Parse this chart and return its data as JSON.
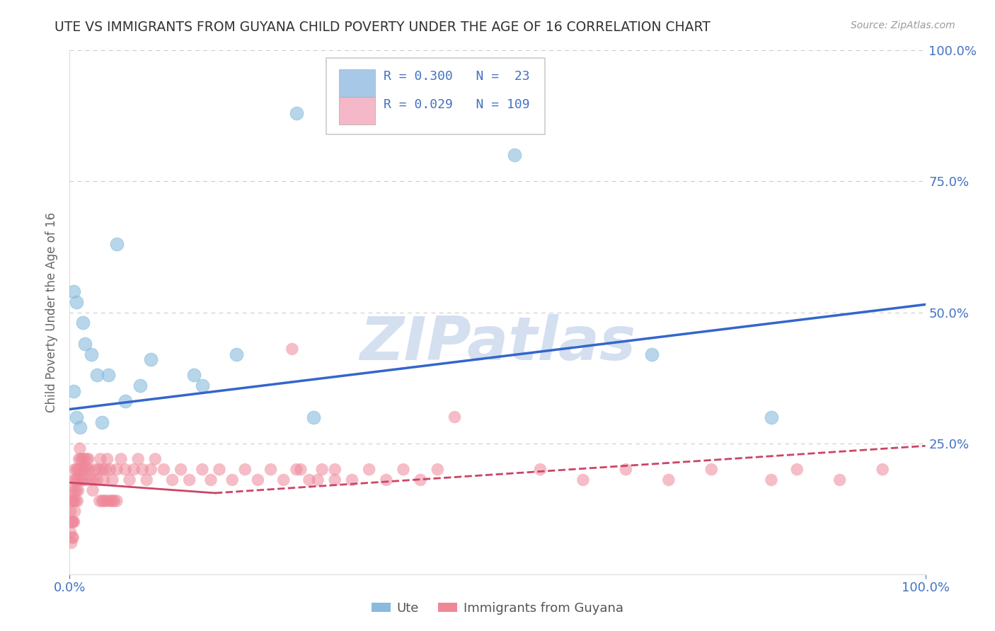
{
  "title": "UTE VS IMMIGRANTS FROM GUYANA CHILD POVERTY UNDER THE AGE OF 16 CORRELATION CHART",
  "source": "Source: ZipAtlas.com",
  "ylabel": "Child Poverty Under the Age of 16",
  "watermark": "ZIPatlas",
  "xlim": [
    0.0,
    1.0
  ],
  "ylim": [
    0.0,
    1.0
  ],
  "ytick_positions": [
    0.0,
    0.25,
    0.5,
    0.75,
    1.0
  ],
  "legend_line1": "R = 0.300   N =  23",
  "legend_line2": "R = 0.029   N = 109",
  "legend_color1": "#a8c8e8",
  "legend_color2": "#f4b8c8",
  "series1_name": "Ute",
  "series2_name": "Immigrants from Guyana",
  "series1_color": "#88bbdd",
  "series2_color": "#ee8899",
  "series1_edge": "#88bbdd",
  "series2_edge": "#ee8899",
  "line1_color": "#3366cc",
  "line2_color": "#cc4466",
  "background_color": "#ffffff",
  "grid_color": "#cccccc",
  "title_color": "#333333",
  "source_color": "#999999",
  "watermark_color": "#d4dff0",
  "tick_color": "#4472c4",
  "ylabel_color": "#666666",
  "ute_x": [
    0.265,
    0.52,
    0.005,
    0.008,
    0.015,
    0.018,
    0.025,
    0.032,
    0.045,
    0.055,
    0.065,
    0.082,
    0.095,
    0.145,
    0.155,
    0.195,
    0.285,
    0.68,
    0.82,
    0.005,
    0.008,
    0.012,
    0.038
  ],
  "ute_y": [
    0.88,
    0.8,
    0.54,
    0.52,
    0.48,
    0.44,
    0.42,
    0.38,
    0.38,
    0.63,
    0.33,
    0.36,
    0.41,
    0.38,
    0.36,
    0.42,
    0.3,
    0.42,
    0.3,
    0.35,
    0.3,
    0.28,
    0.29
  ],
  "guyana_x": [
    0.001,
    0.001,
    0.002,
    0.002,
    0.002,
    0.003,
    0.003,
    0.003,
    0.004,
    0.004,
    0.004,
    0.005,
    0.005,
    0.005,
    0.006,
    0.006,
    0.006,
    0.007,
    0.007,
    0.008,
    0.008,
    0.009,
    0.009,
    0.01,
    0.01,
    0.011,
    0.011,
    0.012,
    0.012,
    0.013,
    0.014,
    0.015,
    0.015,
    0.016,
    0.017,
    0.018,
    0.019,
    0.02,
    0.021,
    0.022,
    0.023,
    0.025,
    0.027,
    0.028,
    0.03,
    0.032,
    0.034,
    0.036,
    0.038,
    0.04,
    0.042,
    0.044,
    0.047,
    0.05,
    0.055,
    0.06,
    0.065,
    0.07,
    0.075,
    0.08,
    0.085,
    0.09,
    0.095,
    0.1,
    0.11,
    0.12,
    0.13,
    0.14,
    0.155,
    0.165,
    0.175,
    0.19,
    0.205,
    0.22,
    0.235,
    0.25,
    0.265,
    0.28,
    0.295,
    0.31,
    0.26,
    0.27,
    0.29,
    0.31,
    0.33,
    0.35,
    0.37,
    0.39,
    0.41,
    0.43,
    0.45,
    0.55,
    0.6,
    0.65,
    0.7,
    0.75,
    0.82,
    0.85,
    0.9,
    0.95,
    0.035,
    0.038,
    0.04,
    0.042,
    0.045,
    0.048,
    0.05,
    0.052,
    0.055
  ],
  "guyana_y": [
    0.12,
    0.08,
    0.14,
    0.1,
    0.06,
    0.16,
    0.1,
    0.07,
    0.14,
    0.1,
    0.07,
    0.18,
    0.14,
    0.1,
    0.2,
    0.16,
    0.12,
    0.18,
    0.14,
    0.2,
    0.16,
    0.18,
    0.14,
    0.2,
    0.16,
    0.22,
    0.18,
    0.24,
    0.2,
    0.22,
    0.18,
    0.22,
    0.18,
    0.2,
    0.22,
    0.2,
    0.18,
    0.22,
    0.2,
    0.22,
    0.2,
    0.18,
    0.16,
    0.18,
    0.2,
    0.18,
    0.2,
    0.22,
    0.2,
    0.18,
    0.2,
    0.22,
    0.2,
    0.18,
    0.2,
    0.22,
    0.2,
    0.18,
    0.2,
    0.22,
    0.2,
    0.18,
    0.2,
    0.22,
    0.2,
    0.18,
    0.2,
    0.18,
    0.2,
    0.18,
    0.2,
    0.18,
    0.2,
    0.18,
    0.2,
    0.18,
    0.2,
    0.18,
    0.2,
    0.18,
    0.43,
    0.2,
    0.18,
    0.2,
    0.18,
    0.2,
    0.18,
    0.2,
    0.18,
    0.2,
    0.3,
    0.2,
    0.18,
    0.2,
    0.18,
    0.2,
    0.18,
    0.2,
    0.18,
    0.2,
    0.14,
    0.14,
    0.14,
    0.14,
    0.14,
    0.14,
    0.14,
    0.14,
    0.14
  ],
  "line1_x": [
    0.0,
    1.0
  ],
  "line1_y": [
    0.315,
    0.515
  ],
  "line2_x": [
    0.0,
    0.17,
    1.0
  ],
  "line2_y": [
    0.175,
    0.155,
    0.245
  ],
  "line2_solid_end": 0.17
}
